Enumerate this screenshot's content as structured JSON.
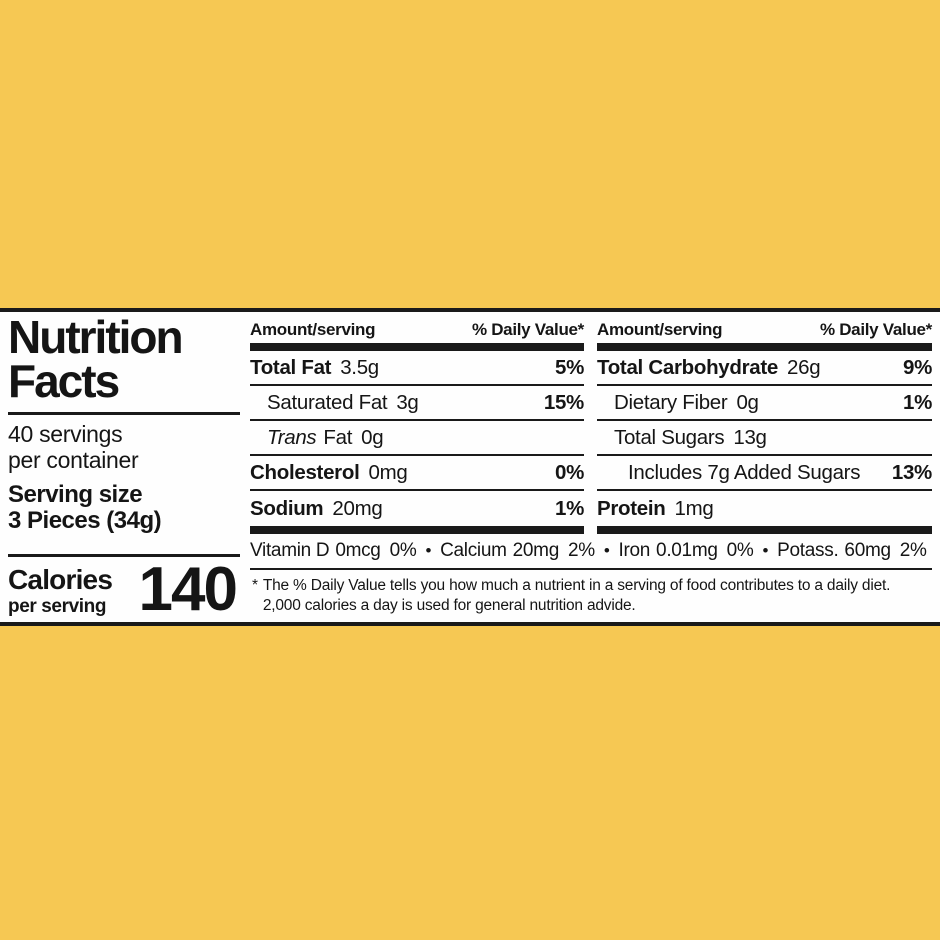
{
  "colors": {
    "background": "#F6C853",
    "panel": "#FEFEFE",
    "ink": "#1a1a1a"
  },
  "label": {
    "title_line1": "Nutrition",
    "title_line2": "Facts",
    "servings_line1": "40 servings",
    "servings_line2": "per container",
    "serving_size_label": "Serving size",
    "serving_size_value": "3 Pieces (34g)",
    "calories_label": "Calories",
    "calories_sublabel": "per serving",
    "calories_value": "140"
  },
  "columns": [
    {
      "header_left": "Amount/serving",
      "header_right": "% Daily Value*",
      "rows": [
        {
          "name": "Total Fat",
          "amount": "3.5g",
          "dv": "5%"
        },
        {
          "name": "Saturated Fat",
          "amount": "3g",
          "dv": "15%"
        },
        {
          "name_italic": "Trans",
          "name": "Fat",
          "amount": "0g",
          "dv": ""
        },
        {
          "name": "Cholesterol",
          "amount": "0mg",
          "dv": "0%"
        },
        {
          "name": "Sodium",
          "amount": "20mg",
          "dv": "1%"
        }
      ]
    },
    {
      "header_left": "Amount/serving",
      "header_right": "% Daily Value*",
      "rows": [
        {
          "name": "Total Carbohydrate",
          "amount": "26g",
          "dv": "9%"
        },
        {
          "name": "Dietary Fiber",
          "amount": "0g",
          "dv": "1%"
        },
        {
          "name": "Total Sugars",
          "amount": "13g",
          "dv": ""
        },
        {
          "name": "Includes 7g Added Sugars",
          "amount": "",
          "dv": "13%"
        },
        {
          "name": "Protein",
          "amount": "1mg",
          "dv": ""
        }
      ]
    }
  ],
  "micronutrients": {
    "separator": "•",
    "items": [
      {
        "name": "Vitamin D",
        "amount": "0mcg",
        "dv": "0%"
      },
      {
        "name": "Calcium",
        "amount": "20mg",
        "dv": "2%"
      },
      {
        "name": "Iron",
        "amount": "0.01mg",
        "dv": "0%"
      },
      {
        "name": "Potass.",
        "amount": "60mg",
        "dv": "2%"
      }
    ]
  },
  "footnote": {
    "marker": "*",
    "line1": "The % Daily Value tells you how much a nutrient in a serving of food contributes to a daily diet.",
    "line2": "2,000 calories a day is used for general nutrition advide."
  }
}
